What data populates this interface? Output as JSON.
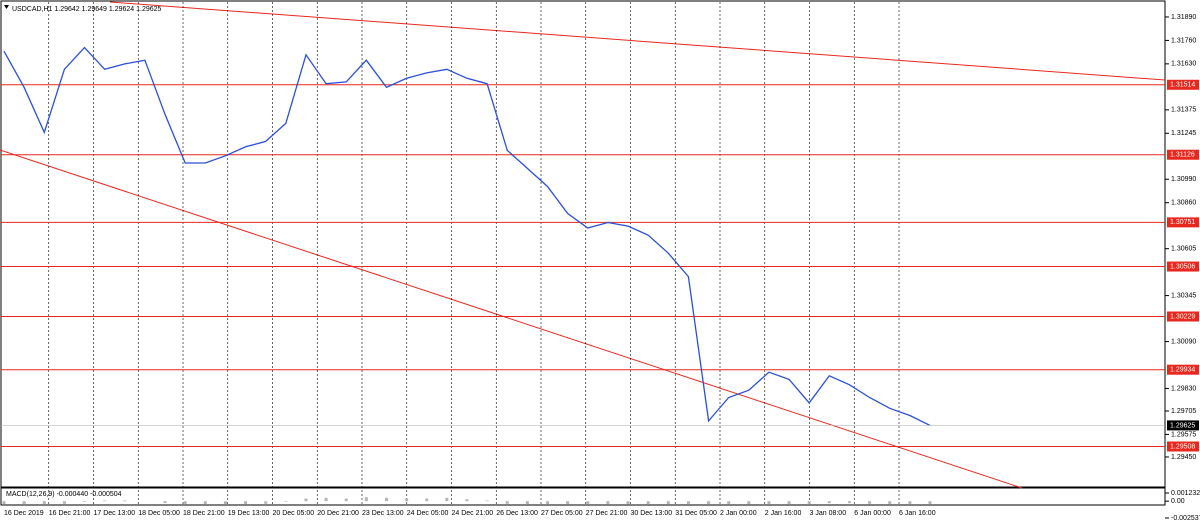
{
  "chart_data": [
    {
      "type": "line",
      "title": "USDCAD,H1  1.29642 1.29649 1.29624 1.29625",
      "xtick_labels": [
        "16 Dec 2019",
        "16 Dec 21:00",
        "17 Dec 13:00",
        "18 Dec 05:00",
        "18 Dec 21:00",
        "19 Dec 13:00",
        "20 Dec 05:00",
        "20 Dec 21:00",
        "23 Dec 13:00",
        "24 Dec 05:00",
        "24 Dec 21:00",
        "26 Dec 13:00",
        "27 Dec 05:00",
        "27 Dec 21:00",
        "30 Dec 13:00",
        "31 Dec 05:00",
        "2 Jan 00:00",
        "2 Jan 16:00",
        "3 Jan 08:00",
        "6 Jan 00:00",
        "6 Jan 16:00"
      ],
      "values": [
        1.317,
        1.315,
        1.3125,
        1.316,
        1.3172,
        1.316,
        1.3163,
        1.3165,
        1.3135,
        1.3108,
        1.3108,
        1.3112,
        1.3117,
        1.312,
        1.313,
        1.3168,
        1.3152,
        1.3153,
        1.3165,
        1.315,
        1.3155,
        1.3158,
        1.316,
        1.3155,
        1.3152,
        1.3115,
        1.3105,
        1.3095,
        1.308,
        1.3072,
        1.3075,
        1.3073,
        1.3068,
        1.3058,
        1.3045,
        1.2965,
        1.2978,
        1.2982,
        1.2992,
        1.2988,
        1.2975,
        1.299,
        1.2985,
        1.2978,
        1.2972,
        1.2968,
        1.29625
      ],
      "color": "#2b4fd8",
      "ylim": [
        1.29289,
        1.31973
      ],
      "yticks": [
        {
          "value": 1.3189,
          "label": "1.31890"
        },
        {
          "value": 1.3176,
          "label": "1.31760"
        },
        {
          "value": 1.3163,
          "label": "1.31630"
        },
        1.31375,
        1.31245,
        {
          "value": 1.3099,
          "label": "1.30990"
        },
        {
          "value": 1.3086,
          "label": "1.30860"
        },
        1.30605,
        1.30345,
        {
          "value": 1.3009,
          "label": "1.30090"
        },
        {
          "value": 1.2983,
          "label": "1.29830"
        },
        1.29705,
        1.29575,
        {
          "value": 1.2945,
          "label": "1.29450"
        }
      ],
      "levels": [
        1.31514,
        1.31126,
        1.30751,
        1.30506,
        1.30229,
        1.29934,
        1.29508
      ],
      "level_color": "#e8281e",
      "last": 1.29625,
      "grid": true
    },
    {
      "type": "histogram",
      "title": "MACD(12,26,9) -0.000440 -0.000504",
      "values": [
        -0.0006,
        -0.0007,
        -0.0008,
        -0.0004,
        -0.0001,
        0.0001,
        0.0001,
        0.0,
        -0.0003,
        -0.0007,
        -0.0009,
        -0.0008,
        -0.0006,
        -0.0004,
        -0.0001,
        0.0004,
        0.0005,
        0.0004,
        0.0006,
        0.0005,
        0.0004,
        0.0004,
        0.0005,
        0.0003,
        0.0001,
        -0.0004,
        -0.0007,
        -0.0009,
        -0.0011,
        -0.0012,
        -0.0011,
        -0.001,
        -0.001,
        -0.0011,
        -0.0013,
        -0.0022,
        -0.0019,
        -0.0014,
        -0.0008,
        -0.0005,
        -0.0005,
        -0.0003,
        -0.0003,
        -0.0004,
        -0.0005,
        -0.0005,
        -0.00044
      ],
      "color": "#b5b5b5",
      "ylim": [
        -0.002537,
        0.001232
      ],
      "yticks": [
        0.001232,
        {
          "value": 0,
          "label": "0.00"
        },
        -0.002537
      ]
    }
  ]
}
